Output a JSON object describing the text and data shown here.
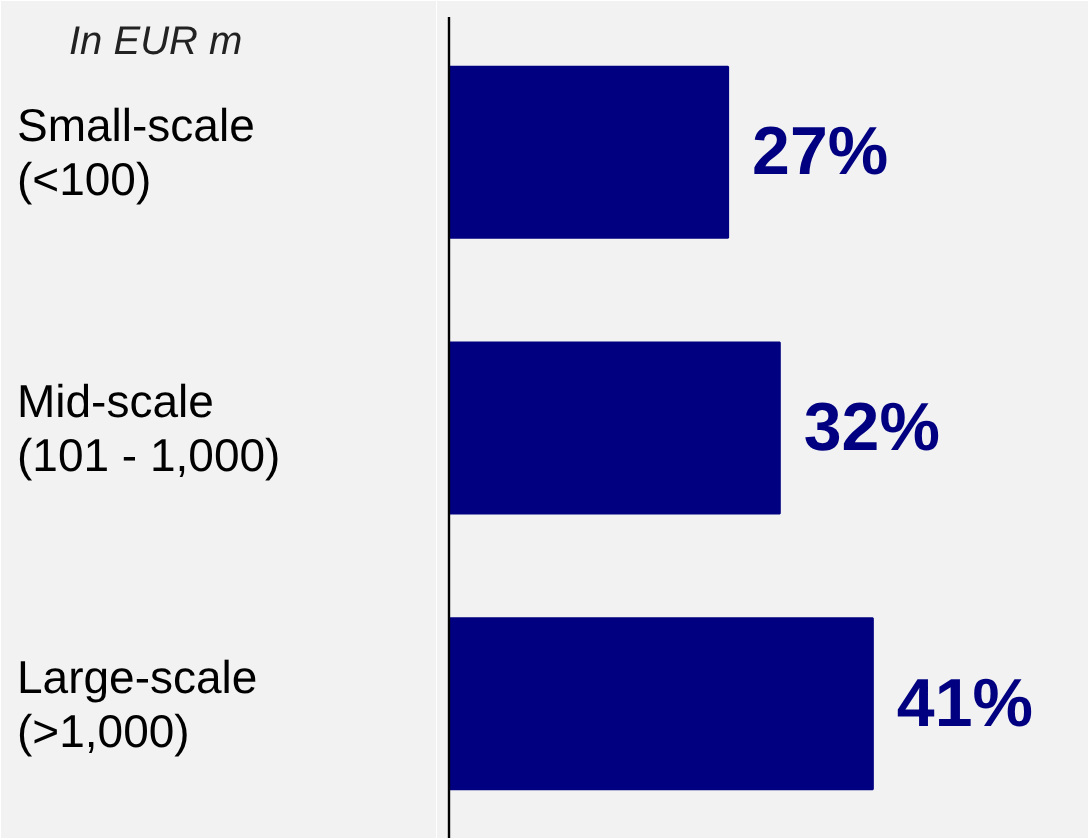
{
  "chart_data": {
    "type": "bar",
    "orientation": "horizontal",
    "ylabel": "In EUR m",
    "categories": [
      "Small-scale\n(<100)",
      "Mid-scale\n(101 - 1,000)",
      "Large-scale\n(>1,000)"
    ],
    "values": [
      27,
      32,
      41
    ],
    "value_labels": [
      "27%",
      "32%",
      "41%"
    ],
    "color": "#000080",
    "grid": false
  }
}
